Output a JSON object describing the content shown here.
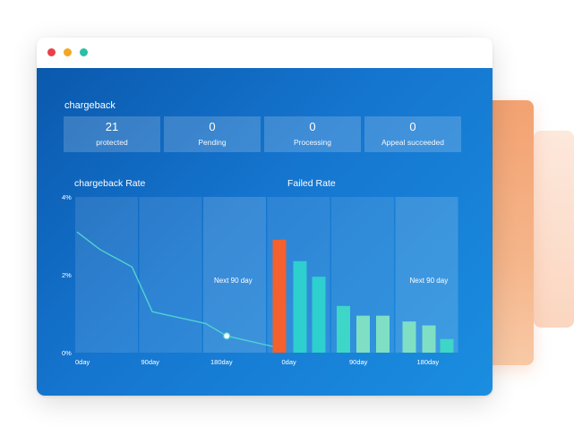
{
  "colors": {
    "accent_blue": "#1575cf",
    "line": "#4fd3d0",
    "bar_highlight": "#f4602e",
    "bar_teal": "#2ecfcf",
    "bar_mint": "#7fdfc4",
    "traffic_red": "#e8404a",
    "traffic_yellow": "#f5a623",
    "traffic_green": "#2bbfa5",
    "deco_orange": "#f3a271"
  },
  "window": {
    "buttons": [
      "close",
      "minimize",
      "maximize"
    ]
  },
  "chargeback": {
    "title": "chargeback",
    "stats": [
      {
        "value": "21",
        "label": "protected"
      },
      {
        "value": "0",
        "label": "Pending"
      },
      {
        "value": "0",
        "label": "Processing"
      },
      {
        "value": "0",
        "label": "Appeal succeeded"
      }
    ]
  },
  "charts": {
    "rate_title": "chargeback  Rate",
    "failed_title": "Failed  Rate",
    "y_ticks": [
      "4%",
      "2%",
      "0%"
    ]
  },
  "chart_data": [
    {
      "type": "line",
      "title": "chargeback  Rate",
      "x_ticks": [
        "0day",
        "90day",
        "180day"
      ],
      "x": [
        0,
        25,
        60,
        82,
        140,
        163,
        215
      ],
      "values": [
        3.1,
        2.65,
        2.2,
        1.05,
        0.75,
        0.43,
        0.15
      ],
      "highlight_point_index": 5,
      "ylim": [
        0,
        4
      ],
      "y_ticks": [
        "4%",
        "2%",
        "0%"
      ],
      "projection_label": "Next  90 day",
      "grid": true
    },
    {
      "type": "bar",
      "title": "Failed  Rate",
      "x_ticks": [
        "0day",
        "90day",
        "180day"
      ],
      "values": [
        2.9,
        2.35,
        1.95,
        1.2,
        0.95,
        0.95,
        0.8,
        0.7,
        0.35
      ],
      "bar_colors": [
        "#f4602e",
        "#2ecfcf",
        "#2ecfcf",
        "#3ed6c6",
        "#7fdfc4",
        "#7fdfc4",
        "#7fdfc4",
        "#7fdfc4",
        "#3ed6c6"
      ],
      "ylim": [
        0,
        4
      ],
      "projection_label": "Next  90 day",
      "grid": true
    }
  ]
}
